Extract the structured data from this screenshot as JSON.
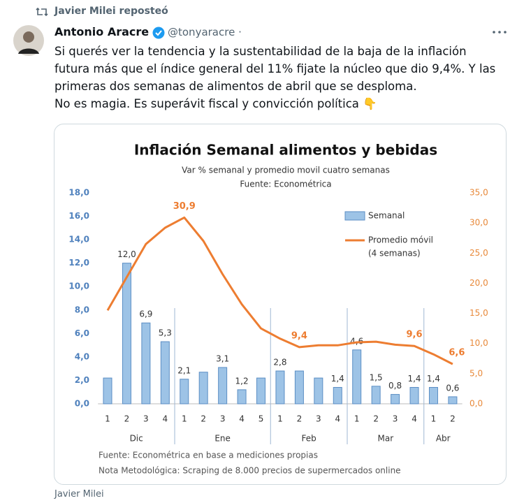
{
  "repost": "Javier Milei reposteó",
  "author": {
    "name": "Antonio Aracre",
    "handle": "@tonyaracre",
    "separator": "·"
  },
  "text": [
    "Si querés ver la tendencia y la sustentabilidad de la baja de la inflación",
    "futura más que el índice general del 11% fijate la núcleo que dio 9,4%. Y las",
    "primeras dos semanas de alimentos de abril que se desploma.",
    "No es magia. Es superávit fiscal y convicción política 👇"
  ],
  "image_credit": "Javier Milei",
  "chart_data": {
    "type": "bar",
    "title": "Inflación Semanal alimentos y bebidas",
    "subtitle": [
      "Var % semanal y promedio movil cuatro semanas",
      "Fuente: Econométrica"
    ],
    "groups": [
      {
        "name": "Dic",
        "categories": [
          "1",
          "2",
          "3",
          "4"
        ]
      },
      {
        "name": "Ene",
        "categories": [
          "1",
          "2",
          "3",
          "4",
          "5"
        ]
      },
      {
        "name": "Feb",
        "categories": [
          "1",
          "2",
          "3",
          "4"
        ]
      },
      {
        "name": "Mar",
        "categories": [
          "1",
          "2",
          "3",
          "4"
        ]
      },
      {
        "name": "Abr",
        "categories": [
          "1",
          "2"
        ]
      }
    ],
    "series": [
      {
        "name": "Semanal",
        "type": "bar",
        "color": "#9dc3e6",
        "stroke": "#5b8ec4",
        "values": [
          2.2,
          12.0,
          6.9,
          5.3,
          2.1,
          2.7,
          3.1,
          1.2,
          2.2,
          2.8,
          2.8,
          2.2,
          1.4,
          4.6,
          1.5,
          0.8,
          1.4,
          1.4,
          0.6
        ],
        "value_labels": [
          null,
          "12,0",
          "6,9",
          "5,3",
          "2,1",
          null,
          "3,1",
          "1,2",
          null,
          "2,8",
          null,
          null,
          "1,4",
          "4,6",
          "1,5",
          "0,8",
          "1,4",
          "1,4",
          "0,6"
        ]
      },
      {
        "name": "Promedio móvil",
        "name_note": "(4 semanas)",
        "type": "line",
        "axis": "y2",
        "color": "#ed7d31",
        "values": [
          15.5,
          21.0,
          26.5,
          29.2,
          30.9,
          27.0,
          21.5,
          16.5,
          12.5,
          10.8,
          9.4,
          9.7,
          9.7,
          10.2,
          10.3,
          9.8,
          9.6,
          8.2,
          6.6
        ],
        "value_labels": [
          null,
          null,
          null,
          null,
          "30,9",
          null,
          null,
          null,
          null,
          null,
          "9,4",
          null,
          null,
          null,
          null,
          null,
          "9,6",
          null,
          "6,6"
        ]
      }
    ],
    "ylim": [
      0,
      18
    ],
    "yticks": [
      {
        "value": 0,
        "label": "0,0"
      },
      {
        "value": 2,
        "label": "2,0"
      },
      {
        "value": 4,
        "label": "4,0"
      },
      {
        "value": 6,
        "label": "6,0"
      },
      {
        "value": 8,
        "label": "8,0"
      },
      {
        "value": 10,
        "label": "10,0"
      },
      {
        "value": 12,
        "label": "12,0"
      },
      {
        "value": 14,
        "label": "14,0"
      },
      {
        "value": 16,
        "label": "16,0"
      },
      {
        "value": 18,
        "label": "18,0"
      }
    ],
    "y2lim": [
      0,
      35
    ],
    "y2ticks": [
      {
        "value": 0,
        "label": "0,0"
      },
      {
        "value": 5,
        "label": "5,0"
      },
      {
        "value": 10,
        "label": "10,0"
      },
      {
        "value": 15,
        "label": "15,0"
      },
      {
        "value": 20,
        "label": "20,0"
      },
      {
        "value": 25,
        "label": "25,0"
      },
      {
        "value": 30,
        "label": "30,0"
      },
      {
        "value": 35,
        "label": "35,0"
      }
    ],
    "y_color": "#4f81bd",
    "y2_color": "#e8893a",
    "notes": [
      "Fuente:  Econométrica en base a mediciones propias",
      "Nota Metodológica: Scraping de 8.000 precios de supermercados online"
    ]
  }
}
